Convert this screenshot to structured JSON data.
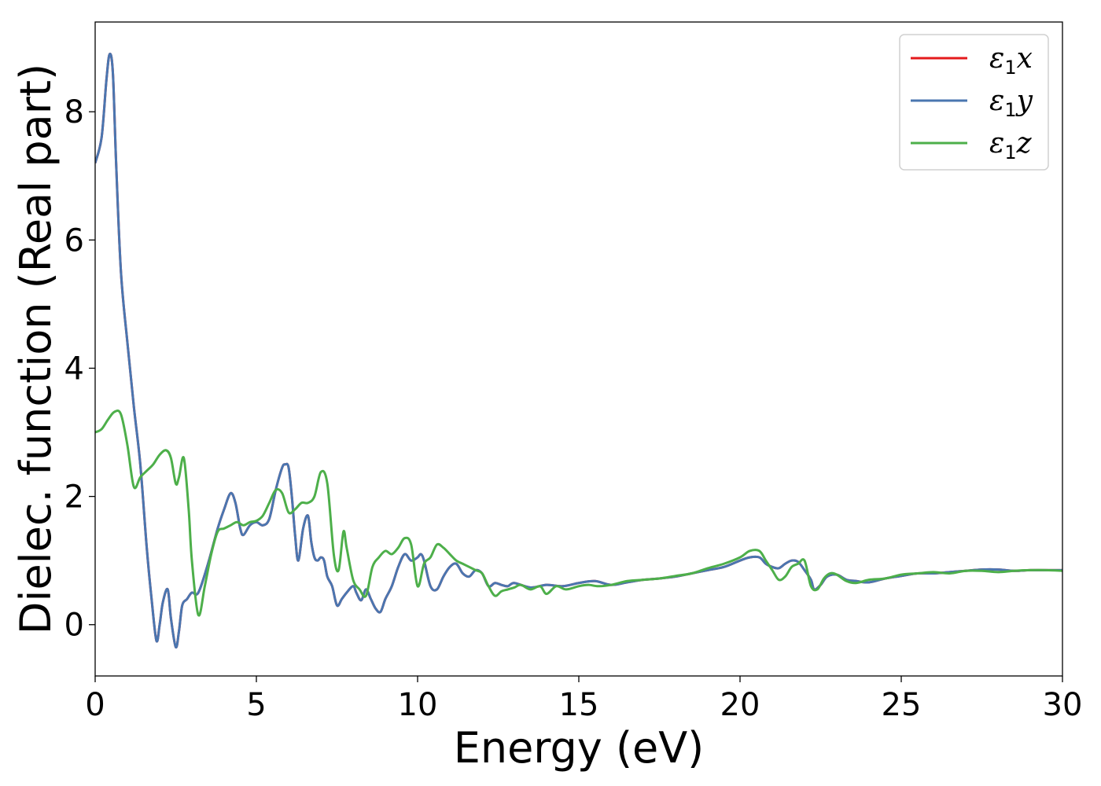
{
  "chart_data": {
    "type": "line",
    "title": "",
    "xlabel": "Energy (eV)",
    "ylabel": "Dielec. function (Real part)",
    "xlim": [
      0,
      30
    ],
    "ylim": [
      -0.8,
      9.4
    ],
    "xticks": [
      0,
      5,
      10,
      15,
      20,
      25,
      30
    ],
    "xtick_labels": [
      "0",
      "5",
      "10",
      "15",
      "20",
      "25",
      "30"
    ],
    "yticks": [
      0,
      2,
      4,
      6,
      8
    ],
    "ytick_labels": [
      "0",
      "2",
      "4",
      "6",
      "8"
    ],
    "grid": false,
    "legend_position": "top-right",
    "series": [
      {
        "name": "ε1x",
        "legend_symbol": "ε",
        "legend_sub": "1",
        "legend_var": "x",
        "color": "#e41a1c",
        "x": [
          0,
          0.2,
          0.35,
          0.45,
          0.55,
          0.65,
          0.8,
          1.0,
          1.2,
          1.4,
          1.6,
          1.75,
          1.9,
          2.0,
          2.1,
          2.25,
          2.35,
          2.5,
          2.6,
          2.7,
          2.85,
          3.0,
          3.2,
          3.5,
          3.8,
          4.0,
          4.2,
          4.35,
          4.5,
          4.6,
          4.8,
          5.0,
          5.2,
          5.4,
          5.6,
          5.8,
          5.9,
          6.0,
          6.1,
          6.2,
          6.3,
          6.45,
          6.6,
          6.7,
          6.8,
          6.9,
          7.0,
          7.1,
          7.2,
          7.35,
          7.5,
          7.65,
          7.8,
          8.0,
          8.1,
          8.25,
          8.4,
          8.55,
          8.7,
          8.85,
          9.0,
          9.2,
          9.4,
          9.6,
          9.8,
          10.0,
          10.1,
          10.2,
          10.4,
          10.6,
          10.8,
          11.0,
          11.2,
          11.4,
          11.6,
          11.8,
          12.0,
          12.2,
          12.4,
          12.6,
          12.8,
          13.0,
          13.5,
          14.0,
          14.5,
          15.0,
          15.5,
          16.0,
          16.5,
          17.0,
          17.5,
          18.0,
          18.5,
          19.0,
          19.5,
          20.0,
          20.3,
          20.6,
          20.8,
          21.0,
          21.2,
          21.4,
          21.6,
          21.8,
          22.0,
          22.2,
          22.3,
          22.5,
          22.7,
          23.0,
          23.3,
          23.6,
          24.0,
          24.5,
          25.0,
          25.5,
          26.0,
          26.5,
          27.0,
          27.5,
          28.0,
          28.5,
          29.0,
          29.5,
          30.0
        ],
        "values": [
          7.2,
          7.6,
          8.5,
          8.9,
          8.6,
          7.2,
          5.5,
          4.4,
          3.4,
          2.5,
          1.2,
          0.4,
          -0.25,
          0.0,
          0.35,
          0.55,
          0.1,
          -0.35,
          -0.1,
          0.3,
          0.4,
          0.5,
          0.5,
          0.95,
          1.5,
          1.8,
          2.05,
          1.9,
          1.5,
          1.4,
          1.55,
          1.6,
          1.55,
          1.65,
          2.1,
          2.45,
          2.5,
          2.45,
          2.0,
          1.4,
          1.0,
          1.5,
          1.7,
          1.3,
          1.05,
          1.0,
          1.05,
          1.0,
          0.75,
          0.6,
          0.3,
          0.4,
          0.5,
          0.6,
          0.5,
          0.38,
          0.55,
          0.4,
          0.25,
          0.2,
          0.4,
          0.6,
          0.9,
          1.1,
          1.0,
          1.05,
          1.1,
          1.0,
          0.6,
          0.55,
          0.75,
          0.9,
          0.95,
          0.8,
          0.75,
          0.85,
          0.8,
          0.6,
          0.65,
          0.62,
          0.6,
          0.65,
          0.58,
          0.62,
          0.6,
          0.65,
          0.68,
          0.62,
          0.66,
          0.7,
          0.72,
          0.75,
          0.8,
          0.85,
          0.9,
          1.0,
          1.05,
          1.05,
          0.95,
          0.9,
          0.88,
          0.95,
          1.0,
          0.98,
          0.85,
          0.7,
          0.55,
          0.62,
          0.75,
          0.78,
          0.7,
          0.68,
          0.66,
          0.72,
          0.76,
          0.8,
          0.8,
          0.82,
          0.84,
          0.86,
          0.86,
          0.84,
          0.85,
          0.85,
          0.85
        ]
      },
      {
        "name": "ε1y",
        "legend_symbol": "ε",
        "legend_sub": "1",
        "legend_var": "y",
        "color": "#4a76b0",
        "x": [
          0,
          0.2,
          0.35,
          0.45,
          0.55,
          0.65,
          0.8,
          1.0,
          1.2,
          1.4,
          1.6,
          1.75,
          1.9,
          2.0,
          2.1,
          2.25,
          2.35,
          2.5,
          2.6,
          2.7,
          2.85,
          3.0,
          3.2,
          3.5,
          3.8,
          4.0,
          4.2,
          4.35,
          4.5,
          4.6,
          4.8,
          5.0,
          5.2,
          5.4,
          5.6,
          5.8,
          5.9,
          6.0,
          6.1,
          6.2,
          6.3,
          6.45,
          6.6,
          6.7,
          6.8,
          6.9,
          7.0,
          7.1,
          7.2,
          7.35,
          7.5,
          7.65,
          7.8,
          8.0,
          8.1,
          8.25,
          8.4,
          8.55,
          8.7,
          8.85,
          9.0,
          9.2,
          9.4,
          9.6,
          9.8,
          10.0,
          10.1,
          10.2,
          10.4,
          10.6,
          10.8,
          11.0,
          11.2,
          11.4,
          11.6,
          11.8,
          12.0,
          12.2,
          12.4,
          12.6,
          12.8,
          13.0,
          13.5,
          14.0,
          14.5,
          15.0,
          15.5,
          16.0,
          16.5,
          17.0,
          17.5,
          18.0,
          18.5,
          19.0,
          19.5,
          20.0,
          20.3,
          20.6,
          20.8,
          21.0,
          21.2,
          21.4,
          21.6,
          21.8,
          22.0,
          22.2,
          22.3,
          22.5,
          22.7,
          23.0,
          23.3,
          23.6,
          24.0,
          24.5,
          25.0,
          25.5,
          26.0,
          26.5,
          27.0,
          27.5,
          28.0,
          28.5,
          29.0,
          29.5,
          30.0
        ],
        "values": [
          7.2,
          7.6,
          8.5,
          8.9,
          8.6,
          7.2,
          5.5,
          4.4,
          3.4,
          2.5,
          1.2,
          0.4,
          -0.25,
          0.0,
          0.35,
          0.55,
          0.1,
          -0.35,
          -0.1,
          0.3,
          0.4,
          0.5,
          0.5,
          0.95,
          1.5,
          1.8,
          2.05,
          1.9,
          1.5,
          1.4,
          1.55,
          1.6,
          1.55,
          1.65,
          2.1,
          2.45,
          2.5,
          2.45,
          2.0,
          1.4,
          1.0,
          1.5,
          1.7,
          1.3,
          1.05,
          1.0,
          1.05,
          1.0,
          0.75,
          0.6,
          0.3,
          0.4,
          0.5,
          0.6,
          0.5,
          0.38,
          0.55,
          0.4,
          0.25,
          0.2,
          0.4,
          0.6,
          0.9,
          1.1,
          1.0,
          1.05,
          1.1,
          1.0,
          0.6,
          0.55,
          0.75,
          0.9,
          0.95,
          0.8,
          0.75,
          0.85,
          0.8,
          0.6,
          0.65,
          0.62,
          0.6,
          0.65,
          0.58,
          0.62,
          0.6,
          0.65,
          0.68,
          0.62,
          0.66,
          0.7,
          0.72,
          0.75,
          0.8,
          0.85,
          0.9,
          1.0,
          1.05,
          1.05,
          0.95,
          0.9,
          0.88,
          0.95,
          1.0,
          0.98,
          0.85,
          0.7,
          0.55,
          0.62,
          0.75,
          0.78,
          0.7,
          0.68,
          0.66,
          0.72,
          0.76,
          0.8,
          0.8,
          0.82,
          0.84,
          0.86,
          0.86,
          0.84,
          0.85,
          0.85,
          0.85
        ]
      },
      {
        "name": "ε1z",
        "legend_symbol": "ε",
        "legend_sub": "1",
        "legend_var": "z",
        "color": "#4daf4a",
        "x": [
          0,
          0.2,
          0.4,
          0.6,
          0.8,
          1.0,
          1.2,
          1.4,
          1.6,
          1.8,
          2.0,
          2.2,
          2.35,
          2.5,
          2.6,
          2.75,
          2.9,
          3.0,
          3.2,
          3.4,
          3.6,
          3.8,
          4.0,
          4.2,
          4.4,
          4.6,
          4.8,
          5.0,
          5.2,
          5.4,
          5.6,
          5.8,
          6.0,
          6.2,
          6.4,
          6.6,
          6.8,
          7.0,
          7.2,
          7.4,
          7.55,
          7.7,
          7.8,
          8.0,
          8.2,
          8.4,
          8.6,
          8.8,
          9.0,
          9.2,
          9.4,
          9.6,
          9.8,
          10.0,
          10.2,
          10.4,
          10.6,
          10.8,
          11.0,
          11.2,
          11.4,
          11.6,
          11.8,
          12.0,
          12.2,
          12.4,
          12.6,
          12.8,
          13.0,
          13.2,
          13.5,
          13.8,
          14.0,
          14.3,
          14.6,
          15.0,
          15.3,
          15.6,
          16.0,
          16.5,
          17.0,
          17.5,
          18.0,
          18.5,
          19.0,
          19.5,
          20.0,
          20.3,
          20.6,
          20.8,
          21.0,
          21.2,
          21.4,
          21.6,
          21.8,
          22.0,
          22.2,
          22.4,
          22.6,
          22.8,
          23.0,
          23.3,
          23.6,
          24.0,
          24.5,
          25.0,
          25.5,
          26.0,
          26.5,
          27.0,
          27.5,
          28.0,
          28.5,
          29.0,
          29.5,
          30.0
        ],
        "values": [
          3.0,
          3.05,
          3.2,
          3.32,
          3.28,
          2.8,
          2.15,
          2.3,
          2.4,
          2.5,
          2.65,
          2.72,
          2.6,
          2.2,
          2.3,
          2.6,
          1.8,
          1.0,
          0.15,
          0.6,
          1.1,
          1.45,
          1.5,
          1.55,
          1.6,
          1.55,
          1.6,
          1.62,
          1.7,
          1.9,
          2.1,
          2.05,
          1.75,
          1.8,
          1.9,
          1.9,
          2.0,
          2.38,
          2.2,
          1.1,
          0.85,
          1.45,
          1.2,
          0.7,
          0.55,
          0.45,
          0.9,
          1.05,
          1.15,
          1.1,
          1.2,
          1.35,
          1.25,
          0.6,
          0.95,
          1.05,
          1.25,
          1.2,
          1.1,
          1.0,
          0.95,
          0.9,
          0.85,
          0.8,
          0.6,
          0.45,
          0.52,
          0.55,
          0.58,
          0.62,
          0.55,
          0.6,
          0.48,
          0.6,
          0.55,
          0.6,
          0.62,
          0.6,
          0.62,
          0.68,
          0.7,
          0.72,
          0.76,
          0.8,
          0.88,
          0.95,
          1.05,
          1.15,
          1.15,
          1.0,
          0.85,
          0.7,
          0.75,
          0.9,
          0.95,
          1.0,
          0.6,
          0.55,
          0.72,
          0.8,
          0.78,
          0.68,
          0.65,
          0.7,
          0.72,
          0.78,
          0.8,
          0.82,
          0.8,
          0.84,
          0.84,
          0.82,
          0.84,
          0.85,
          0.85,
          0.84
        ]
      }
    ]
  }
}
